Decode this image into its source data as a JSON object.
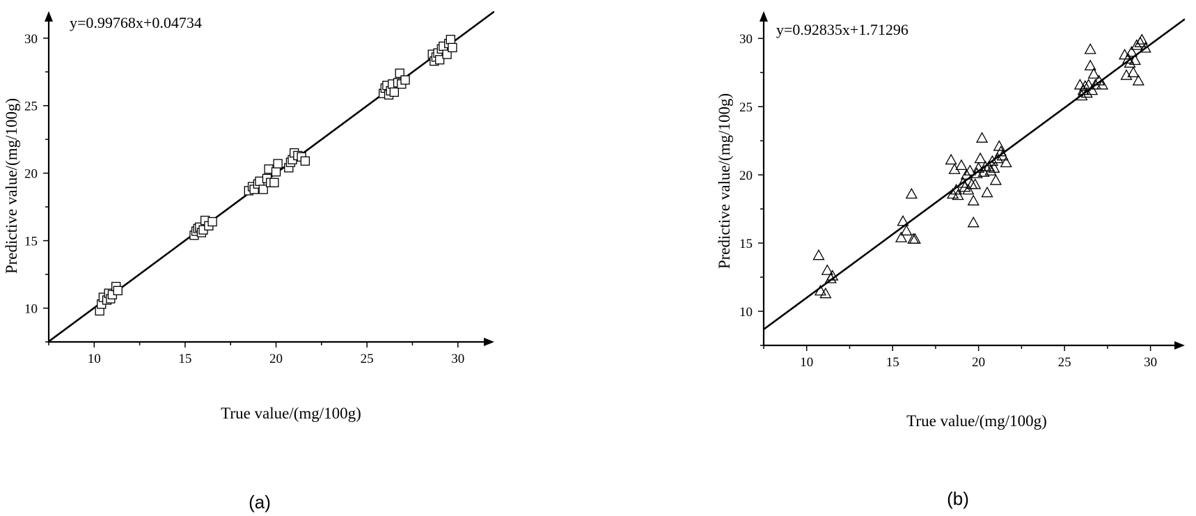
{
  "chart_data": [
    {
      "type": "scatter",
      "panel_label": "(a)",
      "equation": "y=0.99768x+0.04734",
      "xlabel": "True value/(mg/100g)",
      "ylabel": "Predictive value/(mg/100g)",
      "xlim": [
        7.5,
        32
      ],
      "ylim": [
        7.5,
        32
      ],
      "xticks": [
        10,
        15,
        20,
        25,
        30
      ],
      "yticks": [
        10,
        15,
        20,
        25,
        30
      ],
      "grid": false,
      "marker": "square",
      "fit_line": {
        "slope": 0.99768,
        "intercept": 0.04734
      },
      "points": [
        [
          10.3,
          9.8
        ],
        [
          10.4,
          10.3
        ],
        [
          10.5,
          10.8
        ],
        [
          10.7,
          10.6
        ],
        [
          10.8,
          11.1
        ],
        [
          10.9,
          10.7
        ],
        [
          11.0,
          11.0
        ],
        [
          11.2,
          11.6
        ],
        [
          11.3,
          11.3
        ],
        [
          15.5,
          15.4
        ],
        [
          15.6,
          15.7
        ],
        [
          15.7,
          15.9
        ],
        [
          15.8,
          16.0
        ],
        [
          15.9,
          15.6
        ],
        [
          16.0,
          15.8
        ],
        [
          16.1,
          16.5
        ],
        [
          16.3,
          16.1
        ],
        [
          16.5,
          16.4
        ],
        [
          18.5,
          18.7
        ],
        [
          18.7,
          19.0
        ],
        [
          18.8,
          18.8
        ],
        [
          19.0,
          19.2
        ],
        [
          19.1,
          19.4
        ],
        [
          19.3,
          18.8
        ],
        [
          19.5,
          19.6
        ],
        [
          19.6,
          20.3
        ],
        [
          19.7,
          19.3
        ],
        [
          19.9,
          19.3
        ],
        [
          20.0,
          20.1
        ],
        [
          20.1,
          20.7
        ],
        [
          20.7,
          20.4
        ],
        [
          20.8,
          20.8
        ],
        [
          20.9,
          21.0
        ],
        [
          21.0,
          21.5
        ],
        [
          21.2,
          21.3
        ],
        [
          21.4,
          21.2
        ],
        [
          21.6,
          20.9
        ],
        [
          25.9,
          25.9
        ],
        [
          26.0,
          26.3
        ],
        [
          26.1,
          26.5
        ],
        [
          26.2,
          25.8
        ],
        [
          26.3,
          26.1
        ],
        [
          26.4,
          26.6
        ],
        [
          26.5,
          26.0
        ],
        [
          26.7,
          26.7
        ],
        [
          26.8,
          27.4
        ],
        [
          26.9,
          26.6
        ],
        [
          27.1,
          26.9
        ],
        [
          28.6,
          28.8
        ],
        [
          28.7,
          28.3
        ],
        [
          28.8,
          28.6
        ],
        [
          28.9,
          28.9
        ],
        [
          29.0,
          28.4
        ],
        [
          29.1,
          29.2
        ],
        [
          29.2,
          29.4
        ],
        [
          29.4,
          28.8
        ],
        [
          29.5,
          29.6
        ],
        [
          29.6,
          29.9
        ],
        [
          29.7,
          29.3
        ]
      ]
    },
    {
      "type": "scatter",
      "panel_label": "(b)",
      "equation": "y=0.92835x+1.71296",
      "xlabel": "True value/(mg/100g)",
      "ylabel": "Predictive value/(mg/100g)",
      "xlim": [
        7.5,
        32
      ],
      "ylim": [
        7.5,
        32
      ],
      "xticks": [
        10,
        15,
        20,
        25,
        30
      ],
      "yticks": [
        10,
        15,
        20,
        25,
        30
      ],
      "grid": false,
      "marker": "triangle",
      "fit_line": {
        "slope": 0.92835,
        "intercept": 1.71296
      },
      "points": [
        [
          10.7,
          14.1
        ],
        [
          10.8,
          11.5
        ],
        [
          11.1,
          11.3
        ],
        [
          11.2,
          13.0
        ],
        [
          11.4,
          12.4
        ],
        [
          11.5,
          12.6
        ],
        [
          15.5,
          15.4
        ],
        [
          15.6,
          16.6
        ],
        [
          15.8,
          15.9
        ],
        [
          16.1,
          18.6
        ],
        [
          16.2,
          15.3
        ],
        [
          16.3,
          15.3
        ],
        [
          18.4,
          21.1
        ],
        [
          18.5,
          18.6
        ],
        [
          18.6,
          20.4
        ],
        [
          18.7,
          18.9
        ],
        [
          18.8,
          18.5
        ],
        [
          19.0,
          20.7
        ],
        [
          19.1,
          19.4
        ],
        [
          19.2,
          19.1
        ],
        [
          19.3,
          20.0
        ],
        [
          19.4,
          18.9
        ],
        [
          19.5,
          20.3
        ],
        [
          19.6,
          19.3
        ],
        [
          19.7,
          16.5
        ],
        [
          19.7,
          18.1
        ],
        [
          19.8,
          19.3
        ],
        [
          19.9,
          20.1
        ],
        [
          20.0,
          20.5
        ],
        [
          20.1,
          21.2
        ],
        [
          20.2,
          22.7
        ],
        [
          20.3,
          20.2
        ],
        [
          20.4,
          20.6
        ],
        [
          20.5,
          18.7
        ],
        [
          20.6,
          20.6
        ],
        [
          20.7,
          20.3
        ],
        [
          20.8,
          21.0
        ],
        [
          20.9,
          20.5
        ],
        [
          21.0,
          19.6
        ],
        [
          21.1,
          21.2
        ],
        [
          21.2,
          22.1
        ],
        [
          21.3,
          21.7
        ],
        [
          21.4,
          21.4
        ],
        [
          21.6,
          20.9
        ],
        [
          25.9,
          26.6
        ],
        [
          26.0,
          25.8
        ],
        [
          26.1,
          26.2
        ],
        [
          26.2,
          26.5
        ],
        [
          26.3,
          26.0
        ],
        [
          26.4,
          26.6
        ],
        [
          26.5,
          28.0
        ],
        [
          26.5,
          29.2
        ],
        [
          26.6,
          26.2
        ],
        [
          26.7,
          27.4
        ],
        [
          26.8,
          26.6
        ],
        [
          27.0,
          26.9
        ],
        [
          27.2,
          26.6
        ],
        [
          28.5,
          28.8
        ],
        [
          28.6,
          27.3
        ],
        [
          28.7,
          28.5
        ],
        [
          28.8,
          28.2
        ],
        [
          28.9,
          29.0
        ],
        [
          29.0,
          27.5
        ],
        [
          29.1,
          28.4
        ],
        [
          29.2,
          29.5
        ],
        [
          29.3,
          26.9
        ],
        [
          29.4,
          29.7
        ],
        [
          29.5,
          29.9
        ],
        [
          29.7,
          29.3
        ]
      ]
    }
  ]
}
